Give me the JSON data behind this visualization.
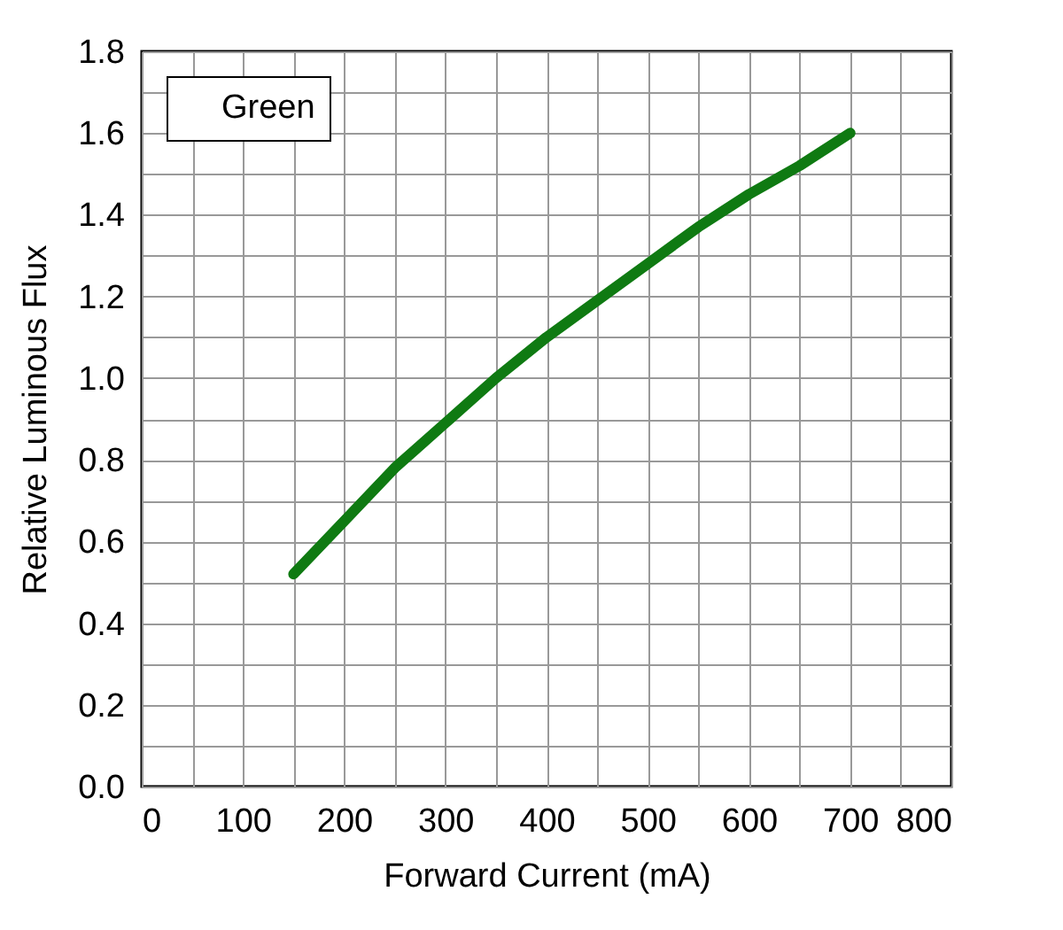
{
  "chart_data": {
    "type": "line",
    "xlabel": "Forward Current (mA)",
    "ylabel": "Relative Luminous Flux",
    "xlim": [
      0,
      800
    ],
    "xticks": [
      0,
      {
        "value": 50,
        "label": null
      },
      100,
      {
        "value": 150,
        "label": null
      },
      200,
      {
        "value": 250,
        "label": null
      },
      300,
      {
        "value": 350,
        "label": null
      },
      400,
      {
        "value": 450,
        "label": null
      },
      500,
      {
        "value": 550,
        "label": null
      },
      600,
      {
        "value": 650,
        "label": null
      },
      700,
      {
        "value": 750,
        "label": null
      },
      800
    ],
    "ylim": [
      0,
      1.8
    ],
    "yticks": [
      {
        "value": 0,
        "label": "0.0"
      },
      {
        "value": 0.1,
        "label": null
      },
      {
        "value": 0.2,
        "label": "0.2"
      },
      {
        "value": 0.3,
        "label": null
      },
      {
        "value": 0.4,
        "label": "0.4"
      },
      {
        "value": 0.5,
        "label": null
      },
      {
        "value": 0.6,
        "label": "0.6"
      },
      {
        "value": 0.7,
        "label": null
      },
      {
        "value": 0.8,
        "label": "0.8"
      },
      {
        "value": 0.9,
        "label": null
      },
      {
        "value": 1.0,
        "label": "1.0"
      },
      {
        "value": 1.1,
        "label": null
      },
      {
        "value": 1.2,
        "label": "1.2"
      },
      {
        "value": 1.3,
        "label": null
      },
      {
        "value": 1.4,
        "label": "1.4"
      },
      {
        "value": 1.5,
        "label": null
      },
      {
        "value": 1.6,
        "label": "1.6"
      },
      {
        "value": 1.7,
        "label": null
      },
      {
        "value": 1.8,
        "label": "1.8"
      }
    ],
    "x": [
      150,
      200,
      250,
      300,
      350,
      400,
      450,
      500,
      550,
      600,
      650,
      700
    ],
    "series": [
      {
        "name": "Green",
        "color": "#0f7a12",
        "values": [
          0.52,
          0.65,
          0.78,
          0.89,
          1.0,
          1.1,
          1.19,
          1.28,
          1.37,
          1.45,
          1.52,
          1.6
        ]
      }
    ],
    "grid": true,
    "legend": "top left",
    "marker": "none",
    "line_style": "solid"
  }
}
